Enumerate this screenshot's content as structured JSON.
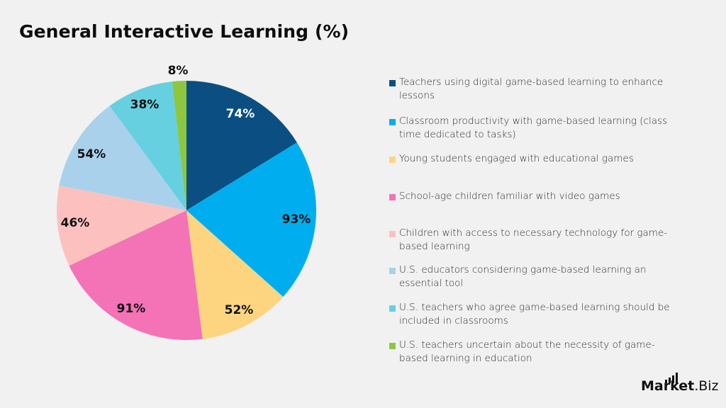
{
  "title": "General Interactive Learning (%)",
  "logo": {
    "bold": "Market",
    "light": ".Biz"
  },
  "chart_data": {
    "type": "pie",
    "title": "General Interactive Learning (%)",
    "start_angle_deg": 0,
    "direction": "clockwise",
    "legend_position": "right",
    "categories": [
      "Teachers using digital game-based learning to enhance lessons",
      "Classroom productivity with game-based learning (class time dedicated to tasks)",
      "Young students engaged with educational games",
      "School-age children familiar with video games",
      "Children with access to necessary technology for game-based learning",
      "U.S. educators considering game-based learning an essential tool",
      "U.S. teachers who agree game-based learning should be included in classrooms",
      "U.S. teachers uncertain about the necessity of game-based learning in education"
    ],
    "values": [
      74,
      93,
      52,
      91,
      46,
      54,
      38,
      8
    ],
    "labels": [
      "74%",
      "93%",
      "52%",
      "91%",
      "46%",
      "54%",
      "38%",
      "8%"
    ],
    "colors": [
      "#0b4f82",
      "#00aeef",
      "#fdd580",
      "#f472b6",
      "#fcc1bf",
      "#a9d1ec",
      "#66cfe0",
      "#8dc63f"
    ],
    "label_colors": [
      "#ffffff",
      "#111111",
      "#111111",
      "#111111",
      "#111111",
      "#111111",
      "#111111",
      "#111111"
    ]
  },
  "legend": {
    "items": [
      {
        "text": "Teachers using digital game-based learning to enhance lessons",
        "lines": [
          "Teachers using digital game-based learning to enhance",
          "lessons"
        ],
        "color": "#0b4f82"
      },
      {
        "text": "Classroom productivity with game-based learning (class time dedicated to tasks)",
        "lines": [
          "Classroom productivity with game-based learning (class",
          "time dedicated to tasks)"
        ],
        "color": "#00aeef"
      },
      {
        "text": "Young students engaged with educational games",
        "lines": [
          "Young students engaged with educational games"
        ],
        "color": "#fdd580"
      },
      {
        "text": "School-age children familiar with video games",
        "lines": [
          "School-age children familiar with video games"
        ],
        "color": "#f472b6"
      },
      {
        "text": "Children with access to necessary technology for game-based learning",
        "lines": [
          "Children with access to necessary technology for game-",
          "based learning"
        ],
        "color": "#fcc1bf"
      },
      {
        "text": "U.S. educators considering game-based learning an essential tool",
        "lines": [
          "U.S. educators considering game-based learning an",
          "essential tool"
        ],
        "color": "#a9d1ec"
      },
      {
        "text": "U.S. teachers who agree game-based learning should be included in classrooms",
        "lines": [
          "U.S. teachers who agree game-based learning should be",
          "included in classrooms"
        ],
        "color": "#66cfe0"
      },
      {
        "text": "U.S. teachers uncertain about the necessity of game-based learning in education",
        "lines": [
          "U.S. teachers uncertain about the necessity of game-",
          "based learning in education"
        ],
        "color": "#8dc63f"
      }
    ]
  }
}
